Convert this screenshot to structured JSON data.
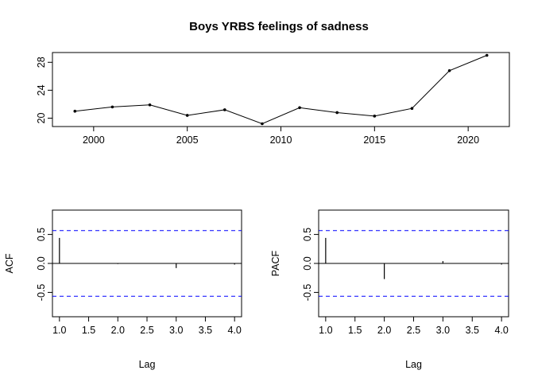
{
  "chart_data": [
    {
      "type": "line",
      "title": "Boys YRBS feelings of sadness",
      "xlabel": "",
      "ylabel": "",
      "x": [
        1999,
        2001,
        2003,
        2005,
        2007,
        2009,
        2011,
        2013,
        2015,
        2017,
        2019,
        2021
      ],
      "series": [
        {
          "values": [
            21.0,
            21.6,
            21.9,
            20.4,
            21.2,
            19.2,
            21.5,
            20.8,
            20.3,
            21.4,
            26.8,
            29.0
          ]
        }
      ],
      "xlim": [
        1997.8,
        2022.2
      ],
      "ylim": [
        18.8,
        29.4
      ],
      "xticks": [
        "2000",
        "2005",
        "2010",
        "2015",
        "2020"
      ],
      "yticks": [
        "20",
        "24",
        "28"
      ],
      "markers": "points"
    },
    {
      "type": "bar",
      "title": "",
      "xlabel": "Lag",
      "ylabel": "ACF",
      "lags": [
        1,
        2,
        3,
        4
      ],
      "values": [
        0.44,
        -0.01,
        -0.08,
        -0.02
      ],
      "confidence_bound": 0.566,
      "xlim": [
        0.88,
        4.12
      ],
      "ylim": [
        -0.92,
        0.92
      ],
      "xticks": [
        "1.0",
        "1.5",
        "2.0",
        "2.5",
        "3.0",
        "3.5",
        "4.0"
      ],
      "yticks": [
        "-0.5",
        "0.0",
        "0.5"
      ],
      "bound_color": "#0000ff"
    },
    {
      "type": "bar",
      "title": "",
      "xlabel": "Lag",
      "ylabel": "PACF",
      "lags": [
        1,
        2,
        3,
        4
      ],
      "values": [
        0.44,
        -0.27,
        0.04,
        -0.02
      ],
      "confidence_bound": 0.566,
      "xlim": [
        0.88,
        4.12
      ],
      "ylim": [
        -0.92,
        0.92
      ],
      "xticks": [
        "1.0",
        "1.5",
        "2.0",
        "2.5",
        "3.0",
        "3.5",
        "4.0"
      ],
      "yticks": [
        "-0.5",
        "0.0",
        "0.5"
      ],
      "bound_color": "#0000ff"
    }
  ]
}
